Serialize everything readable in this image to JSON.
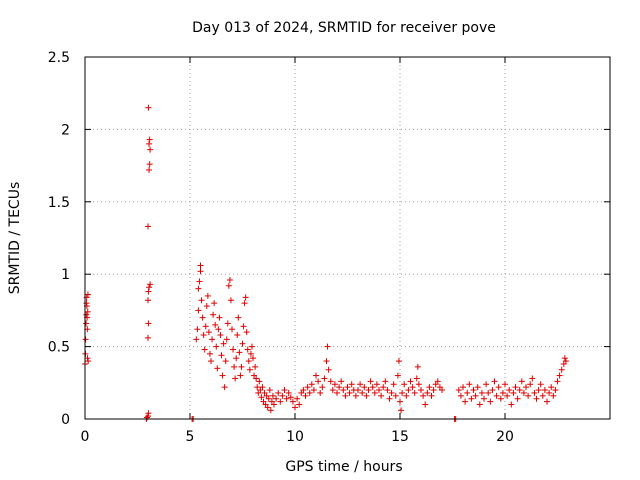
{
  "chart_data": {
    "type": "scatter",
    "title": "Day 013 of 2024, SRMTID for receiver pove",
    "xlabel": "GPS time / hours",
    "ylabel": "SRMTID / TECUs",
    "xlim": [
      0,
      25
    ],
    "ylim": [
      0,
      2.5
    ],
    "xticks": [
      0,
      5,
      10,
      15,
      20
    ],
    "xtick_labels": [
      "0",
      "5",
      "10",
      "15",
      "20"
    ],
    "yticks": [
      0,
      0.5,
      1,
      1.5,
      2,
      2.5
    ],
    "ytick_labels": [
      "0",
      "0.5",
      "1",
      "1.5",
      "2",
      "2.5"
    ],
    "grid": true,
    "marker": "+",
    "marker_color": "#e00000",
    "series": [
      {
        "name": "SRMTID",
        "points": [
          [
            0.0,
            0.38
          ],
          [
            0.02,
            0.45
          ],
          [
            0.03,
            0.55
          ],
          [
            0.05,
            0.66
          ],
          [
            0.06,
            0.72
          ],
          [
            0.07,
            0.8
          ],
          [
            0.08,
            0.84
          ],
          [
            0.09,
            0.78
          ],
          [
            0.1,
            0.7
          ],
          [
            0.11,
            0.62
          ],
          [
            0.12,
            0.42
          ],
          [
            0.13,
            0.74
          ],
          [
            0.14,
            0.86
          ],
          [
            0.15,
            0.4
          ],
          [
            2.92,
            0.0
          ],
          [
            2.95,
            0.01
          ],
          [
            3.0,
            0.02
          ],
          [
            3.02,
            0.04
          ],
          [
            3.0,
            0.56
          ],
          [
            3.02,
            0.66
          ],
          [
            3.0,
            0.82
          ],
          [
            3.02,
            0.88
          ],
          [
            3.05,
            0.91
          ],
          [
            3.1,
            0.93
          ],
          [
            3.0,
            1.33
          ],
          [
            3.05,
            1.72
          ],
          [
            3.08,
            1.76
          ],
          [
            3.1,
            1.86
          ],
          [
            3.05,
            1.9
          ],
          [
            3.08,
            1.93
          ],
          [
            3.02,
            2.15
          ],
          [
            5.1,
            0.0
          ],
          [
            5.15,
            0.0
          ],
          [
            5.3,
            0.55
          ],
          [
            5.35,
            0.62
          ],
          [
            5.4,
            0.75
          ],
          [
            5.4,
            0.9
          ],
          [
            5.45,
            0.95
          ],
          [
            5.5,
            1.02
          ],
          [
            5.5,
            1.06
          ],
          [
            5.55,
            0.82
          ],
          [
            5.6,
            0.7
          ],
          [
            5.65,
            0.58
          ],
          [
            5.7,
            0.48
          ],
          [
            5.75,
            0.64
          ],
          [
            5.8,
            0.78
          ],
          [
            5.85,
            0.85
          ],
          [
            5.9,
            0.6
          ],
          [
            5.95,
            0.45
          ],
          [
            6.0,
            0.4
          ],
          [
            6.05,
            0.55
          ],
          [
            6.1,
            0.72
          ],
          [
            6.15,
            0.8
          ],
          [
            6.2,
            0.65
          ],
          [
            6.25,
            0.5
          ],
          [
            6.3,
            0.35
          ],
          [
            6.35,
            0.62
          ],
          [
            6.4,
            0.7
          ],
          [
            6.45,
            0.58
          ],
          [
            6.5,
            0.44
          ],
          [
            6.55,
            0.3
          ],
          [
            6.6,
            0.52
          ],
          [
            6.65,
            0.22
          ],
          [
            6.7,
            0.4
          ],
          [
            6.75,
            0.55
          ],
          [
            6.8,
            0.66
          ],
          [
            6.85,
            0.92
          ],
          [
            6.9,
            0.96
          ],
          [
            6.95,
            0.82
          ],
          [
            7.0,
            0.62
          ],
          [
            7.05,
            0.48
          ],
          [
            7.1,
            0.36
          ],
          [
            7.15,
            0.28
          ],
          [
            7.2,
            0.42
          ],
          [
            7.25,
            0.58
          ],
          [
            7.3,
            0.7
          ],
          [
            7.35,
            0.46
          ],
          [
            7.4,
            0.3
          ],
          [
            7.45,
            0.36
          ],
          [
            7.5,
            0.52
          ],
          [
            7.55,
            0.64
          ],
          [
            7.6,
            0.8
          ],
          [
            7.65,
            0.84
          ],
          [
            7.7,
            0.6
          ],
          [
            7.75,
            0.48
          ],
          [
            7.8,
            0.4
          ],
          [
            7.85,
            0.34
          ],
          [
            7.9,
            0.45
          ],
          [
            7.95,
            0.5
          ],
          [
            8.0,
            0.42
          ],
          [
            8.05,
            0.3
          ],
          [
            8.1,
            0.36
          ],
          [
            8.15,
            0.28
          ],
          [
            8.2,
            0.22
          ],
          [
            8.25,
            0.18
          ],
          [
            8.3,
            0.26
          ],
          [
            8.35,
            0.2
          ],
          [
            8.4,
            0.15
          ],
          [
            8.45,
            0.22
          ],
          [
            8.5,
            0.12
          ],
          [
            8.55,
            0.18
          ],
          [
            8.6,
            0.1
          ],
          [
            8.65,
            0.16
          ],
          [
            8.7,
            0.08
          ],
          [
            8.75,
            0.14
          ],
          [
            8.8,
            0.2
          ],
          [
            8.85,
            0.06
          ],
          [
            8.9,
            0.12
          ],
          [
            8.95,
            0.16
          ],
          [
            9.0,
            0.1
          ],
          [
            9.1,
            0.14
          ],
          [
            9.2,
            0.18
          ],
          [
            9.3,
            0.12
          ],
          [
            9.4,
            0.16
          ],
          [
            9.5,
            0.2
          ],
          [
            9.6,
            0.14
          ],
          [
            9.7,
            0.18
          ],
          [
            9.8,
            0.15
          ],
          [
            9.9,
            0.12
          ],
          [
            10.0,
            0.08
          ],
          [
            10.1,
            0.14
          ],
          [
            10.2,
            0.1
          ],
          [
            10.3,
            0.18
          ],
          [
            10.4,
            0.2
          ],
          [
            10.5,
            0.16
          ],
          [
            10.6,
            0.22
          ],
          [
            10.7,
            0.18
          ],
          [
            10.8,
            0.24
          ],
          [
            10.9,
            0.2
          ],
          [
            11.0,
            0.3
          ],
          [
            11.1,
            0.26
          ],
          [
            11.2,
            0.18
          ],
          [
            11.3,
            0.22
          ],
          [
            11.4,
            0.28
          ],
          [
            11.5,
            0.4
          ],
          [
            11.55,
            0.5
          ],
          [
            11.6,
            0.34
          ],
          [
            11.7,
            0.26
          ],
          [
            11.8,
            0.2
          ],
          [
            11.9,
            0.24
          ],
          [
            12.0,
            0.18
          ],
          [
            12.1,
            0.22
          ],
          [
            12.2,
            0.26
          ],
          [
            12.3,
            0.2
          ],
          [
            12.4,
            0.16
          ],
          [
            12.5,
            0.22
          ],
          [
            12.6,
            0.18
          ],
          [
            12.7,
            0.24
          ],
          [
            12.8,
            0.2
          ],
          [
            12.9,
            0.16
          ],
          [
            13.0,
            0.2
          ],
          [
            13.1,
            0.24
          ],
          [
            13.2,
            0.18
          ],
          [
            13.3,
            0.22
          ],
          [
            13.4,
            0.16
          ],
          [
            13.5,
            0.2
          ],
          [
            13.6,
            0.26
          ],
          [
            13.7,
            0.22
          ],
          [
            13.8,
            0.18
          ],
          [
            13.9,
            0.24
          ],
          [
            14.0,
            0.2
          ],
          [
            14.1,
            0.16
          ],
          [
            14.2,
            0.22
          ],
          [
            14.3,
            0.26
          ],
          [
            14.4,
            0.2
          ],
          [
            14.5,
            0.14
          ],
          [
            14.6,
            0.18
          ],
          [
            14.7,
            0.24
          ],
          [
            14.8,
            0.16
          ],
          [
            14.9,
            0.3
          ],
          [
            14.95,
            0.4
          ],
          [
            15.0,
            0.12
          ],
          [
            15.05,
            0.06
          ],
          [
            15.1,
            0.18
          ],
          [
            15.2,
            0.24
          ],
          [
            15.3,
            0.16
          ],
          [
            15.4,
            0.2
          ],
          [
            15.5,
            0.26
          ],
          [
            15.6,
            0.22
          ],
          [
            15.7,
            0.18
          ],
          [
            15.8,
            0.28
          ],
          [
            15.85,
            0.36
          ],
          [
            15.9,
            0.24
          ],
          [
            16.0,
            0.2
          ],
          [
            16.1,
            0.16
          ],
          [
            16.2,
            0.1
          ],
          [
            16.3,
            0.18
          ],
          [
            16.4,
            0.22
          ],
          [
            16.5,
            0.16
          ],
          [
            16.6,
            0.2
          ],
          [
            16.7,
            0.24
          ],
          [
            16.8,
            0.26
          ],
          [
            16.9,
            0.22
          ],
          [
            17.0,
            0.2
          ],
          [
            17.6,
            0.0
          ],
          [
            17.65,
            0.0
          ],
          [
            17.8,
            0.2
          ],
          [
            17.9,
            0.16
          ],
          [
            18.0,
            0.22
          ],
          [
            18.1,
            0.12
          ],
          [
            18.2,
            0.18
          ],
          [
            18.3,
            0.24
          ],
          [
            18.4,
            0.14
          ],
          [
            18.5,
            0.2
          ],
          [
            18.6,
            0.16
          ],
          [
            18.7,
            0.22
          ],
          [
            18.8,
            0.1
          ],
          [
            18.9,
            0.18
          ],
          [
            19.0,
            0.14
          ],
          [
            19.1,
            0.24
          ],
          [
            19.2,
            0.18
          ],
          [
            19.3,
            0.12
          ],
          [
            19.4,
            0.2
          ],
          [
            19.5,
            0.26
          ],
          [
            19.6,
            0.16
          ],
          [
            19.7,
            0.22
          ],
          [
            19.8,
            0.14
          ],
          [
            19.9,
            0.18
          ],
          [
            20.0,
            0.24
          ],
          [
            20.1,
            0.16
          ],
          [
            20.2,
            0.2
          ],
          [
            20.3,
            0.1
          ],
          [
            20.4,
            0.18
          ],
          [
            20.5,
            0.22
          ],
          [
            20.6,
            0.14
          ],
          [
            20.7,
            0.2
          ],
          [
            20.8,
            0.26
          ],
          [
            20.9,
            0.18
          ],
          [
            21.0,
            0.22
          ],
          [
            21.1,
            0.16
          ],
          [
            21.2,
            0.24
          ],
          [
            21.3,
            0.28
          ],
          [
            21.4,
            0.18
          ],
          [
            21.5,
            0.14
          ],
          [
            21.6,
            0.2
          ],
          [
            21.7,
            0.24
          ],
          [
            21.8,
            0.16
          ],
          [
            21.9,
            0.2
          ],
          [
            22.0,
            0.12
          ],
          [
            22.1,
            0.18
          ],
          [
            22.2,
            0.22
          ],
          [
            22.3,
            0.16
          ],
          [
            22.4,
            0.2
          ],
          [
            22.5,
            0.26
          ],
          [
            22.6,
            0.3
          ],
          [
            22.7,
            0.34
          ],
          [
            22.8,
            0.38
          ],
          [
            22.85,
            0.42
          ],
          [
            22.9,
            0.4
          ]
        ]
      }
    ]
  }
}
